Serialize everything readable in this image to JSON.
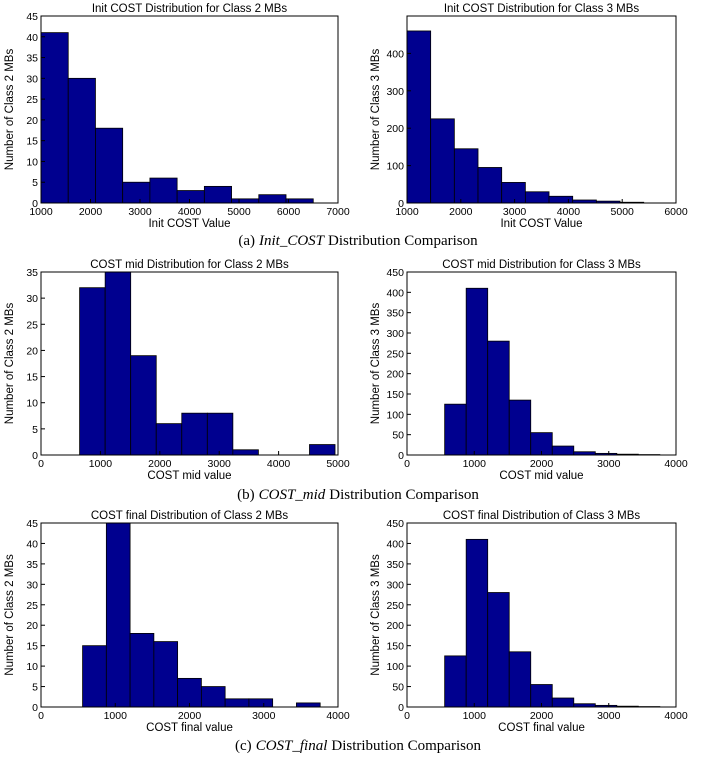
{
  "chart_data": [
    {
      "type": "histogram",
      "title": "Init COST Distribution for Class 2 MBs",
      "x_label": "Init COST Value",
      "y_label": "Number of Class 2 MBs",
      "color": "#00008f",
      "bins": [
        1000,
        1550,
        2100,
        2650,
        3200,
        3750,
        4300,
        4850,
        5400,
        5950,
        6500
      ],
      "values": [
        41,
        30,
        18,
        5,
        6,
        3,
        4,
        1,
        2,
        1
      ],
      "xlim": [
        1000,
        7000
      ],
      "xticks": [
        1000,
        2000,
        3000,
        4000,
        5000,
        6000,
        7000
      ],
      "ylim": [
        0,
        45
      ],
      "yticks": [
        0,
        5,
        10,
        15,
        20,
        25,
        30,
        35,
        40,
        45
      ]
    },
    {
      "type": "histogram",
      "title": "Init COST Distribution for Class 3 MBs",
      "x_label": "Init COST Value",
      "y_label": "Number of Class 3 MBs",
      "color": "#00008f",
      "bins": [
        1000,
        1440,
        1880,
        2320,
        2760,
        3200,
        3640,
        4080,
        4520,
        4960,
        5400
      ],
      "values": [
        460,
        225,
        145,
        95,
        55,
        30,
        18,
        8,
        5,
        2
      ],
      "xlim": [
        1000,
        6000
      ],
      "xticks": [
        1000,
        2000,
        3000,
        4000,
        5000,
        6000
      ],
      "ylim": [
        0,
        500
      ],
      "yticks": [
        0,
        100,
        200,
        300,
        400
      ]
    },
    {
      "type": "histogram",
      "title": "COST mid Distribution for Class 2 MBs",
      "x_label": "COST mid value",
      "y_label": "Number of Class 2 MBs",
      "color": "#00008f",
      "bins": [
        650,
        1080,
        1510,
        1940,
        2370,
        2800,
        3230,
        3660,
        4090,
        4520,
        4950
      ],
      "values": [
        32,
        35,
        19,
        6,
        8,
        8,
        1,
        0,
        0,
        2
      ],
      "xlim": [
        0,
        5000
      ],
      "xticks": [
        0,
        1000,
        2000,
        3000,
        4000,
        5000
      ],
      "ylim": [
        0,
        35
      ],
      "yticks": [
        0,
        5,
        10,
        15,
        20,
        25,
        30,
        35
      ]
    },
    {
      "type": "histogram",
      "title": "COST mid Distribution for Class 3 MBs",
      "x_label": "COST mid value",
      "y_label": "Number of Class 3 MBs",
      "color": "#00008f",
      "bins": [
        560,
        880,
        1200,
        1520,
        1840,
        2160,
        2480,
        2800,
        3120,
        3440,
        3760
      ],
      "values": [
        125,
        410,
        280,
        135,
        55,
        22,
        8,
        4,
        2,
        1
      ],
      "xlim": [
        0,
        4000
      ],
      "xticks": [
        0,
        1000,
        2000,
        3000,
        4000
      ],
      "ylim": [
        0,
        450
      ],
      "yticks": [
        0,
        50,
        100,
        150,
        200,
        250,
        300,
        350,
        400,
        450
      ]
    },
    {
      "type": "histogram",
      "title": "COST final Distribution of Class 2 MBs",
      "x_label": "COST final value",
      "y_label": "Number of Class 2 MBs",
      "color": "#00008f",
      "bins": [
        560,
        880,
        1200,
        1520,
        1840,
        2160,
        2480,
        2800,
        3120,
        3440,
        3760
      ],
      "values": [
        15,
        45,
        18,
        16,
        7,
        5,
        2,
        2,
        0,
        1
      ],
      "xlim": [
        0,
        4000
      ],
      "xticks": [
        0,
        1000,
        2000,
        3000,
        4000
      ],
      "ylim": [
        0,
        45
      ],
      "yticks": [
        0,
        5,
        10,
        15,
        20,
        25,
        30,
        35,
        40,
        45
      ]
    },
    {
      "type": "histogram",
      "title": "COST final Distribution of Class 3 MBs",
      "x_label": "COST final value",
      "y_label": "Number of Class 3 MBs",
      "color": "#00008f",
      "bins": [
        560,
        880,
        1200,
        1520,
        1840,
        2160,
        2480,
        2800,
        3120,
        3440,
        3760
      ],
      "values": [
        125,
        410,
        280,
        135,
        55,
        22,
        8,
        4,
        2,
        1
      ],
      "xlim": [
        0,
        4000
      ],
      "xticks": [
        0,
        1000,
        2000,
        3000,
        4000
      ],
      "ylim": [
        0,
        450
      ],
      "yticks": [
        0,
        50,
        100,
        150,
        200,
        250,
        300,
        350,
        400,
        450
      ]
    }
  ],
  "captions": [
    {
      "label": "(a)",
      "term": "Init_COST",
      "text": "Distribution Comparison"
    },
    {
      "label": "(b)",
      "term": "COST_mid",
      "text": "Distribution Comparison"
    },
    {
      "label": "(c)",
      "term": "COST_final",
      "text": "Distribution Comparison"
    }
  ]
}
